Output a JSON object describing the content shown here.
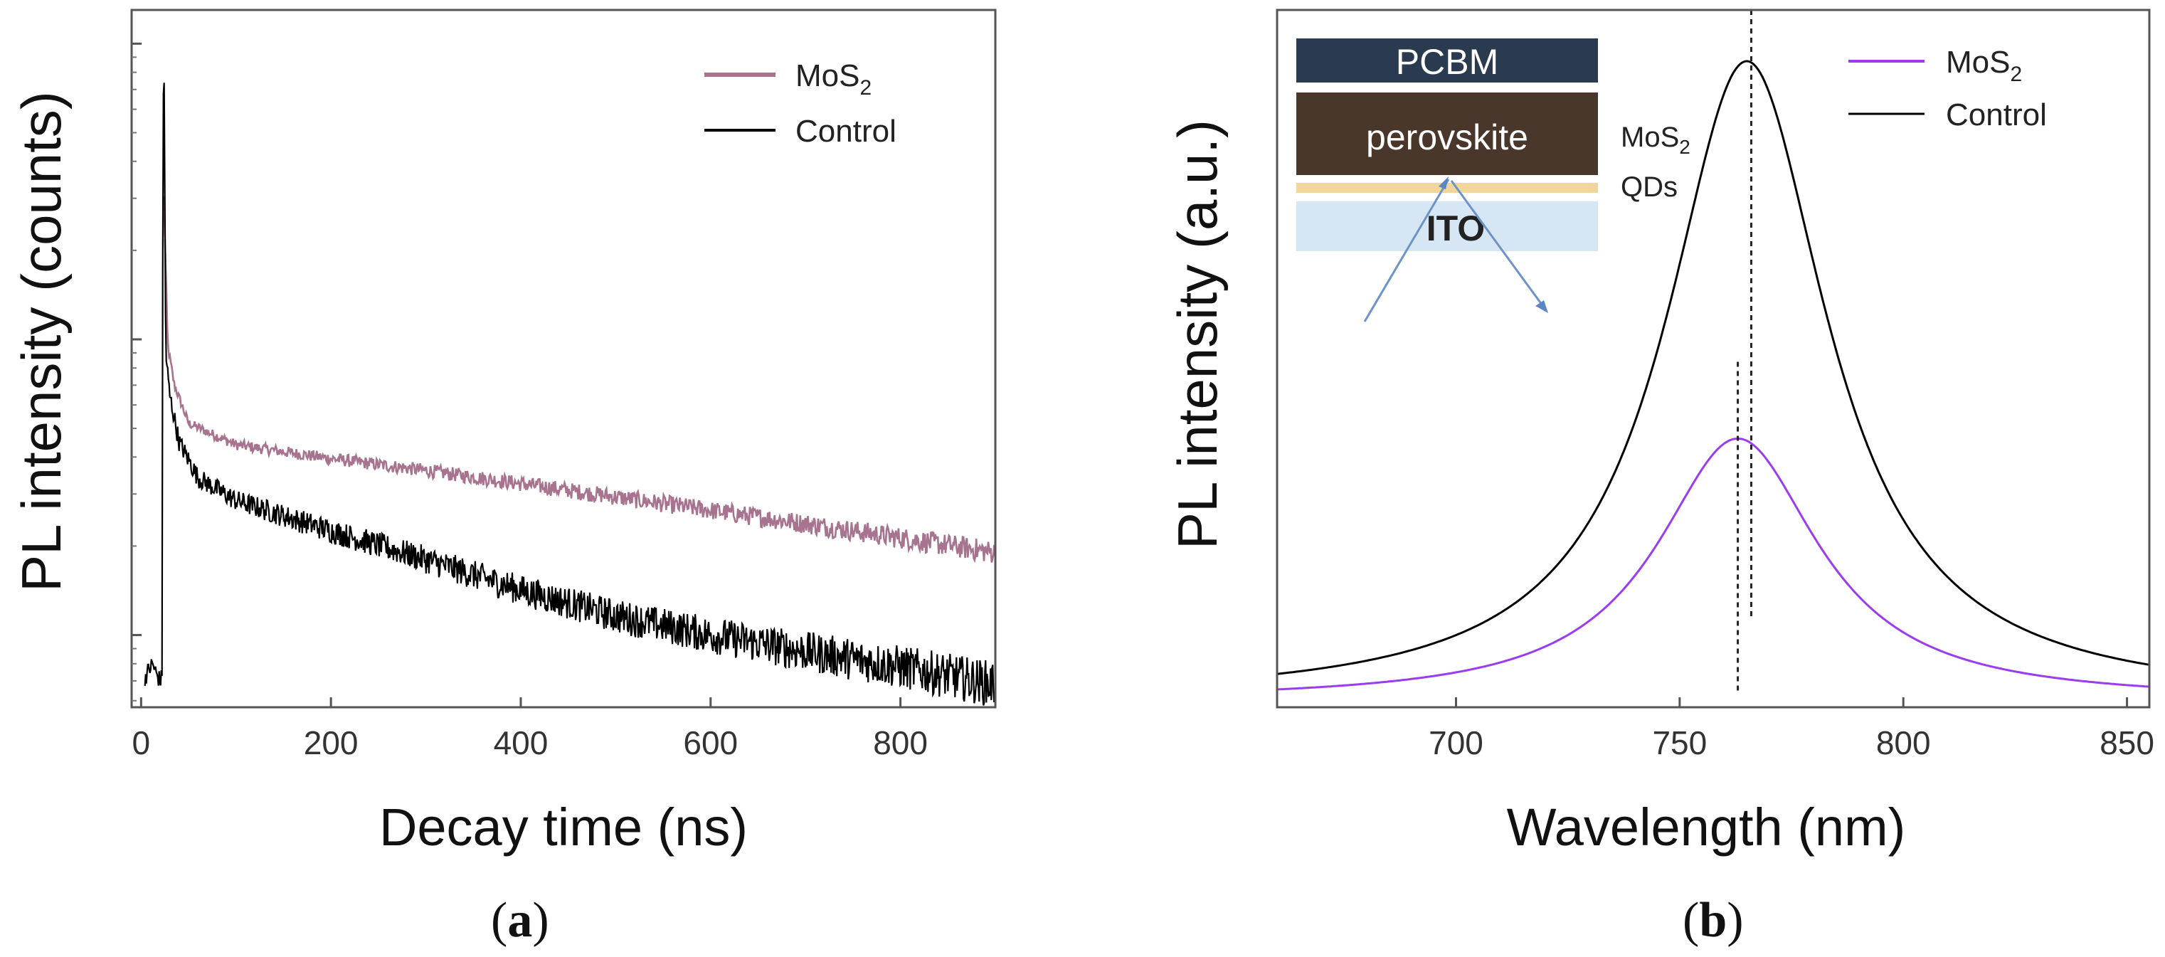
{
  "chart_data": [
    {
      "type": "line",
      "panel_label": "a",
      "xlabel": "Decay time (ns)",
      "ylabel": "PL intensity (counts)",
      "yscale": "log",
      "xlim": [
        -10,
        900
      ],
      "ylim": [
        0.57,
        130
      ],
      "x_ticks": [
        0,
        200,
        400,
        600,
        800
      ],
      "y_major_ticks": [
        1,
        10,
        100
      ],
      "legend": {
        "position": "top-right",
        "entries": [
          {
            "prefix": "MoS",
            "sub": "2",
            "color": "#a7738f"
          },
          {
            "prefix": "Control",
            "sub": "",
            "color": "#000000"
          }
        ]
      },
      "series": [
        {
          "name": "MoS2",
          "color": "#a7738f",
          "x": [
            24,
            28,
            35,
            50,
            100,
            200,
            300,
            400,
            500,
            600,
            700,
            800,
            900
          ],
          "y": [
            30,
            9.5,
            7.0,
            5.2,
            4.4,
            3.95,
            3.6,
            3.25,
            2.93,
            2.64,
            2.38,
            2.13,
            1.9
          ],
          "noise": 0.035
        },
        {
          "name": "Control",
          "color": "#000000",
          "x": [
            4,
            8,
            12,
            16,
            20,
            22,
            23,
            24,
            26,
            30,
            40,
            60,
            100,
            200,
            300,
            400,
            500,
            600,
            700,
            800,
            900
          ],
          "y": [
            0.72,
            0.76,
            0.8,
            0.74,
            0.7,
            0.72,
            50,
            95,
            9.0,
            6.5,
            4.5,
            3.4,
            2.85,
            2.25,
            1.8,
            1.42,
            1.16,
            1.0,
            0.88,
            0.78,
            0.68
          ],
          "noise": 0.07
        }
      ]
    },
    {
      "type": "line",
      "panel_label": "b",
      "xlabel": "Wavelength (nm)",
      "ylabel": "PL intensity (a.u.)",
      "xlim": [
        660,
        855
      ],
      "ylim": [
        0,
        1.09
      ],
      "x_ticks": [
        700,
        750,
        800,
        850
      ],
      "legend": {
        "position": "top-right",
        "entries": [
          {
            "prefix": "MoS",
            "sub": "2",
            "color": "#9a3cf0"
          },
          {
            "prefix": "Control",
            "sub": "",
            "color": "#000000"
          }
        ]
      },
      "series": [
        {
          "name": "MoS2",
          "color": "#9a3cf0",
          "peak_nm": 763,
          "amplitude": 0.41,
          "half_width_nm": 22,
          "baseline": 0.01
        },
        {
          "name": "Control",
          "color": "#000000",
          "peak_nm": 765,
          "amplitude": 1.0,
          "half_width_nm": 22,
          "baseline": 0.01
        }
      ],
      "reference_lines_nm": [
        763,
        766
      ],
      "inset": {
        "layers": [
          "PCBM",
          "perovskite",
          "ITO"
        ],
        "interlayer_label": {
          "prefix": "MoS",
          "sub": "2",
          "line2": "QDs"
        }
      }
    }
  ]
}
